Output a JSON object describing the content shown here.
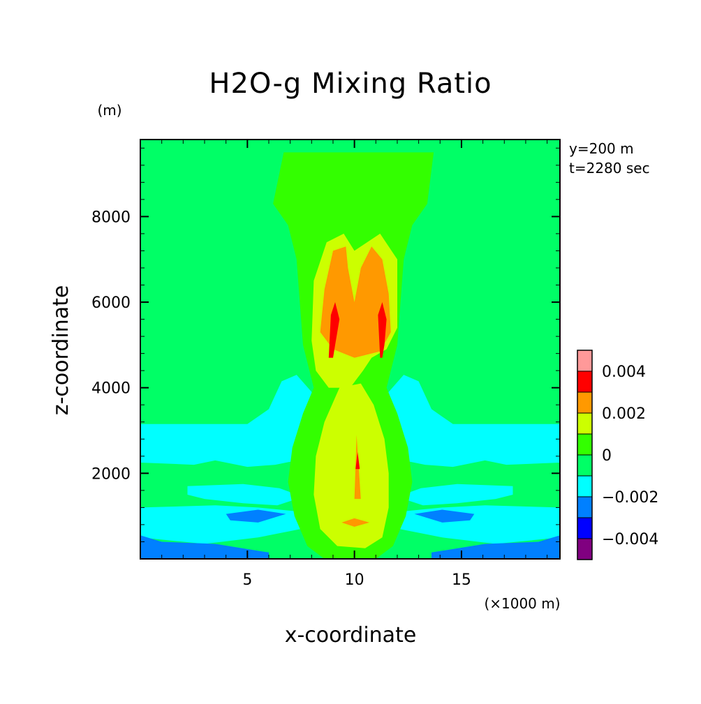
{
  "chart_data": {
    "type": "contour",
    "title": "H2O-g Mixing Ratio",
    "xlabel": "x-coordinate",
    "ylabel": "z-coordinate",
    "x_unit": "(×1000 m)",
    "y_unit": "(m)",
    "xlim": [
      0,
      19.6
    ],
    "ylim": [
      0,
      9800
    ],
    "xticks": [
      {
        "value": 5,
        "label": "5"
      },
      {
        "value": 10,
        "label": "10"
      },
      {
        "value": 15,
        "label": "15"
      }
    ],
    "yticks": [
      {
        "value": 2000,
        "label": "2000"
      },
      {
        "value": 4000,
        "label": "4000"
      },
      {
        "value": 6000,
        "label": "6000"
      },
      {
        "value": 8000,
        "label": "8000"
      }
    ],
    "annotations": [
      "y=200 m",
      "t=2280 sec"
    ],
    "colorbar": {
      "levels": [
        -0.005,
        -0.004,
        -0.003,
        -0.002,
        -0.001,
        0,
        0.001,
        0.002,
        0.003,
        0.004,
        0.005
      ],
      "colors": [
        "#800080",
        "#0000ff",
        "#0080ff",
        "#00ffff",
        "#00ff66",
        "#33ff00",
        "#ccff00",
        "#ff9900",
        "#ff0000",
        "#ff9999"
      ],
      "tick_labels": [
        {
          "value": 0.004,
          "label": "0.004"
        },
        {
          "value": 0.002,
          "label": "0.002"
        },
        {
          "value": 0,
          "label": "0"
        },
        {
          "value": -0.002,
          "label": "−0.002"
        },
        {
          "value": -0.004,
          "label": "−0.004"
        }
      ]
    },
    "regions": [
      {
        "name": "background",
        "color": "#00ff66",
        "poly": [
          [
            0,
            0
          ],
          [
            19.6,
            0
          ],
          [
            19.6,
            9800
          ],
          [
            0,
            9800
          ]
        ]
      },
      {
        "name": "cyan-band-left-upper",
        "color": "#00ffff",
        "poly": [
          [
            0,
            3150
          ],
          [
            5.0,
            3150
          ],
          [
            6.0,
            3500
          ],
          [
            6.6,
            4150
          ],
          [
            7.3,
            4300
          ],
          [
            8.0,
            3900
          ],
          [
            8.3,
            3000
          ],
          [
            8.2,
            2000
          ],
          [
            7.3,
            2300
          ],
          [
            6.3,
            2200
          ],
          [
            5.0,
            2150
          ],
          [
            3.5,
            2300
          ],
          [
            2.5,
            2200
          ],
          [
            0,
            2250
          ]
        ]
      },
      {
        "name": "cyan-band-right-upper",
        "color": "#00ffff",
        "poly": [
          [
            19.6,
            3150
          ],
          [
            14.6,
            3150
          ],
          [
            13.6,
            3500
          ],
          [
            13.0,
            4150
          ],
          [
            12.3,
            4300
          ],
          [
            11.6,
            3900
          ],
          [
            11.3,
            3000
          ],
          [
            11.4,
            2000
          ],
          [
            12.3,
            2300
          ],
          [
            13.3,
            2200
          ],
          [
            14.6,
            2150
          ],
          [
            16.1,
            2300
          ],
          [
            17.1,
            2200
          ],
          [
            19.6,
            2250
          ]
        ]
      },
      {
        "name": "cyan-lobe-left-mid",
        "color": "#00ffff",
        "poly": [
          [
            2.2,
            1700
          ],
          [
            4.8,
            1750
          ],
          [
            6.5,
            1650
          ],
          [
            7.6,
            1450
          ],
          [
            6.4,
            1250
          ],
          [
            4.8,
            1300
          ],
          [
            3.0,
            1400
          ],
          [
            2.2,
            1500
          ]
        ]
      },
      {
        "name": "cyan-lobe-right-mid",
        "color": "#00ffff",
        "poly": [
          [
            17.4,
            1700
          ],
          [
            14.8,
            1750
          ],
          [
            13.1,
            1650
          ],
          [
            12.0,
            1450
          ],
          [
            13.2,
            1250
          ],
          [
            14.8,
            1300
          ],
          [
            16.6,
            1400
          ],
          [
            17.4,
            1500
          ]
        ]
      },
      {
        "name": "cyan-band-left-lower",
        "color": "#00ffff",
        "poly": [
          [
            0,
            1200
          ],
          [
            3.5,
            1250
          ],
          [
            5.5,
            1200
          ],
          [
            7.5,
            1100
          ],
          [
            7.5,
            700
          ],
          [
            5.5,
            500
          ],
          [
            3.0,
            350
          ],
          [
            0,
            500
          ]
        ]
      },
      {
        "name": "cyan-band-right-lower",
        "color": "#00ffff",
        "poly": [
          [
            19.6,
            1200
          ],
          [
            16.1,
            1250
          ],
          [
            14.1,
            1200
          ],
          [
            12.1,
            1100
          ],
          [
            12.1,
            700
          ],
          [
            14.1,
            500
          ],
          [
            16.6,
            350
          ],
          [
            19.6,
            500
          ]
        ]
      },
      {
        "name": "blue-lens-left",
        "color": "#0080ff",
        "poly": [
          [
            4.0,
            1050
          ],
          [
            5.5,
            1150
          ],
          [
            6.8,
            1050
          ],
          [
            5.5,
            850
          ],
          [
            4.2,
            900
          ]
        ]
      },
      {
        "name": "blue-lens-right",
        "color": "#0080ff",
        "poly": [
          [
            15.6,
            1050
          ],
          [
            14.1,
            1150
          ],
          [
            12.8,
            1050
          ],
          [
            14.1,
            850
          ],
          [
            15.4,
            900
          ]
        ]
      },
      {
        "name": "blue-bottom-left",
        "color": "#0080ff",
        "poly": [
          [
            0,
            0
          ],
          [
            6.0,
            0
          ],
          [
            6.0,
            150
          ],
          [
            3.5,
            350
          ],
          [
            1.0,
            400
          ],
          [
            0,
            550
          ]
        ]
      },
      {
        "name": "blue-bottom-right",
        "color": "#0080ff",
        "poly": [
          [
            19.6,
            0
          ],
          [
            13.6,
            0
          ],
          [
            13.6,
            150
          ],
          [
            16.1,
            350
          ],
          [
            18.6,
            400
          ],
          [
            19.6,
            550
          ]
        ]
      },
      {
        "name": "plume-upper-light-green",
        "color": "#33ff00",
        "poly": [
          [
            6.7,
            9500
          ],
          [
            13.7,
            9500
          ],
          [
            13.4,
            8300
          ],
          [
            12.7,
            7800
          ],
          [
            12.3,
            7000
          ],
          [
            12.0,
            5000
          ],
          [
            11.5,
            4000
          ],
          [
            12.0,
            3400
          ],
          [
            12.5,
            2600
          ],
          [
            12.7,
            1800
          ],
          [
            12.4,
            1000
          ],
          [
            11.8,
            300
          ],
          [
            11.0,
            0
          ],
          [
            8.6,
            0
          ],
          [
            7.8,
            300
          ],
          [
            7.2,
            1000
          ],
          [
            6.9,
            1800
          ],
          [
            7.1,
            2600
          ],
          [
            7.6,
            3400
          ],
          [
            8.1,
            4000
          ],
          [
            7.6,
            5000
          ],
          [
            7.3,
            7000
          ],
          [
            6.9,
            7800
          ],
          [
            6.2,
            8300
          ]
        ]
      },
      {
        "name": "plume-yellow-upper",
        "color": "#ccff00",
        "poly": [
          [
            8.0,
            5100
          ],
          [
            8.1,
            6500
          ],
          [
            8.7,
            7400
          ],
          [
            9.5,
            7600
          ],
          [
            10.0,
            7200
          ],
          [
            11.2,
            7600
          ],
          [
            12.0,
            7000
          ],
          [
            12.0,
            5400
          ],
          [
            11.5,
            4900
          ],
          [
            10.8,
            4700
          ],
          [
            10.4,
            4400
          ],
          [
            9.8,
            4000
          ],
          [
            8.8,
            4000
          ],
          [
            8.2,
            4400
          ]
        ]
      },
      {
        "name": "plume-yellow-lower",
        "color": "#ccff00",
        "poly": [
          [
            9.3,
            4000
          ],
          [
            8.6,
            3200
          ],
          [
            8.2,
            2400
          ],
          [
            8.1,
            1500
          ],
          [
            8.4,
            700
          ],
          [
            9.2,
            300
          ],
          [
            10.5,
            250
          ],
          [
            11.3,
            500
          ],
          [
            11.6,
            1200
          ],
          [
            11.6,
            2000
          ],
          [
            11.4,
            2800
          ],
          [
            10.9,
            3600
          ],
          [
            10.3,
            4100
          ]
        ]
      },
      {
        "name": "plume-orange-core",
        "color": "#ff9900",
        "poly": [
          [
            8.4,
            5300
          ],
          [
            8.6,
            6300
          ],
          [
            9.0,
            7200
          ],
          [
            9.6,
            7300
          ],
          [
            9.7,
            6800
          ],
          [
            10.0,
            6000
          ],
          [
            10.3,
            6800
          ],
          [
            10.8,
            7300
          ],
          [
            11.3,
            7000
          ],
          [
            11.6,
            6200
          ],
          [
            11.7,
            5300
          ],
          [
            11.2,
            4850
          ],
          [
            10.0,
            4700
          ],
          [
            9.0,
            4900
          ]
        ]
      },
      {
        "name": "orange-spike",
        "color": "#ff9900",
        "poly": [
          [
            10.0,
            1400
          ],
          [
            10.1,
            2900
          ],
          [
            10.3,
            1400
          ]
        ]
      },
      {
        "name": "orange-lens-bottom",
        "color": "#ff9900",
        "poly": [
          [
            9.4,
            850
          ],
          [
            10.0,
            950
          ],
          [
            10.7,
            850
          ],
          [
            10.0,
            750
          ]
        ]
      },
      {
        "name": "red-left-core",
        "color": "#ff0000",
        "poly": [
          [
            8.8,
            4700
          ],
          [
            8.9,
            5700
          ],
          [
            9.1,
            6000
          ],
          [
            9.3,
            5600
          ],
          [
            9.1,
            5000
          ],
          [
            9.0,
            4700
          ]
        ]
      },
      {
        "name": "red-right-core",
        "color": "#ff0000",
        "poly": [
          [
            11.2,
            4700
          ],
          [
            11.1,
            5700
          ],
          [
            11.3,
            6000
          ],
          [
            11.5,
            5600
          ],
          [
            11.4,
            5000
          ],
          [
            11.3,
            4700
          ]
        ]
      },
      {
        "name": "red-spike",
        "color": "#ff0000",
        "poly": [
          [
            10.05,
            2100
          ],
          [
            10.15,
            2500
          ],
          [
            10.25,
            2100
          ]
        ]
      }
    ]
  }
}
